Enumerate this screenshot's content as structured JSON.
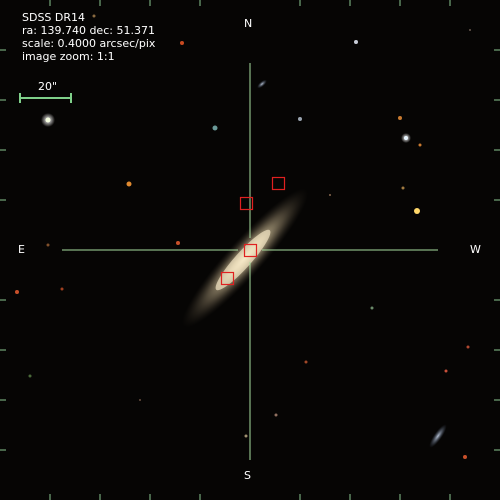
{
  "survey": "SDSS DR14",
  "coords": "ra: 139.740 dec: 51.371",
  "scale": "scale: 0.4000 arcsec/pix",
  "zoom": "image zoom: 1:1",
  "scale_bar_label": "20\"",
  "compass": {
    "north": "N",
    "south": "S",
    "east": "E",
    "west": "W"
  },
  "colors": {
    "crosshair": "#a8e0a0",
    "marker": "#e02020",
    "scale_bar": "#7fd08a",
    "label_text": "#ffffff",
    "background": "#050403"
  }
}
